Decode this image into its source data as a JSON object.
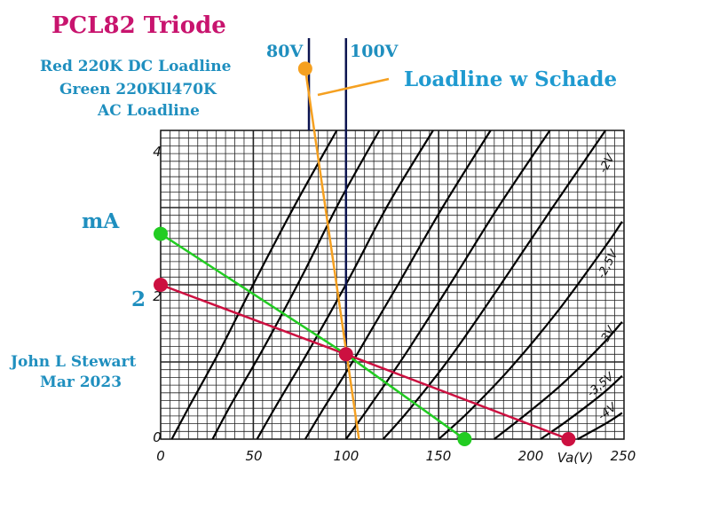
{
  "chart_data": {
    "type": "line",
    "title": "PCL82 Triode",
    "xlabel": "Va(V)",
    "ylabel": "mA",
    "xlim": [
      0,
      250
    ],
    "ylim": [
      0,
      4
    ],
    "x_ticks": [
      "0",
      "50",
      "100",
      "150",
      "200",
      "250"
    ],
    "y_ticks": [
      "0",
      "2",
      "4"
    ],
    "y_extra_label": "2",
    "grid": true,
    "notes": {
      "red": "Red 220K DC Loadline",
      "green_1": "Green 220Kll470K",
      "green_2": "AC Loadline",
      "author": "John L Stewart",
      "date": "Mar 2023",
      "schade": "Loadline w Schade"
    },
    "colors": {
      "title": "#c8146e",
      "notes": "#1f8fbf",
      "schade": "#1f9ad0",
      "red": "#cc1040",
      "green": "#22cc22",
      "orange": "#f5a020",
      "vlines": "#0c1450",
      "curves": "#000000"
    },
    "vertical_lines": [
      {
        "label": "80V",
        "x": 80
      },
      {
        "label": "100V",
        "x": 100
      }
    ],
    "grid_curves": [
      {
        "label": "",
        "points": [
          [
            6,
            0
          ],
          [
            16,
            0.45
          ],
          [
            32,
            1.15
          ],
          [
            52,
            2.1
          ],
          [
            74,
            3.1
          ],
          [
            95,
            4.0
          ]
        ]
      },
      {
        "label": "",
        "points": [
          [
            28,
            0
          ],
          [
            38,
            0.45
          ],
          [
            56,
            1.2
          ],
          [
            76,
            2.1
          ],
          [
            97,
            3.1
          ],
          [
            118,
            4.0
          ]
        ]
      },
      {
        "label": "",
        "points": [
          [
            52,
            0
          ],
          [
            62,
            0.42
          ],
          [
            80,
            1.15
          ],
          [
            101,
            2.05
          ],
          [
            123,
            3.05
          ],
          [
            147,
            4.0
          ]
        ]
      },
      {
        "label": "",
        "points": [
          [
            78,
            0
          ],
          [
            88,
            0.4
          ],
          [
            106,
            1.1
          ],
          [
            128,
            2.0
          ],
          [
            152,
            3.0
          ],
          [
            178,
            4.0
          ]
        ]
      },
      {
        "label": "",
        "points": [
          [
            100,
            0
          ],
          [
            112,
            0.4
          ],
          [
            132,
            1.1
          ],
          [
            156,
            2.0
          ],
          [
            182,
            3.0
          ],
          [
            210,
            4.0
          ]
        ]
      },
      {
        "label": "-2V",
        "points": [
          [
            120,
            0
          ],
          [
            134,
            0.38
          ],
          [
            156,
            1.05
          ],
          [
            182,
            1.95
          ],
          [
            210,
            2.95
          ],
          [
            240,
            4.0
          ]
        ]
      },
      {
        "label": "-2,5V",
        "points": [
          [
            150,
            0
          ],
          [
            166,
            0.35
          ],
          [
            188,
            0.9
          ],
          [
            214,
            1.65
          ],
          [
            240,
            2.5
          ],
          [
            249,
            2.82
          ]
        ]
      },
      {
        "label": "-3V",
        "points": [
          [
            180,
            0
          ],
          [
            196,
            0.3
          ],
          [
            216,
            0.7
          ],
          [
            238,
            1.22
          ],
          [
            249,
            1.52
          ]
        ]
      },
      {
        "label": "-3,5V",
        "points": [
          [
            205,
            0
          ],
          [
            220,
            0.25
          ],
          [
            238,
            0.58
          ],
          [
            249,
            0.82
          ]
        ]
      },
      {
        "label": "-4V",
        "points": [
          [
            225,
            0
          ],
          [
            240,
            0.2
          ],
          [
            249,
            0.34
          ]
        ]
      }
    ],
    "series": [
      {
        "name": "Red 220K DC Loadline",
        "x": [
          0,
          100,
          220
        ],
        "y": [
          2.0,
          1.1,
          0.0
        ]
      },
      {
        "name": "Green 220Kll470K AC Loadline",
        "x": [
          0,
          100,
          164
        ],
        "y": [
          2.66,
          1.1,
          0.0
        ]
      },
      {
        "name": "Loadline w Schade",
        "x": [
          78,
          107
        ],
        "y": [
          4.8,
          0.0
        ]
      }
    ],
    "markers": [
      {
        "series": "red",
        "x": 0,
        "y": 2.0
      },
      {
        "series": "red",
        "x": 100,
        "y": 1.1
      },
      {
        "series": "red",
        "x": 220,
        "y": 0.0
      },
      {
        "series": "green",
        "x": 0,
        "y": 2.66
      },
      {
        "series": "green",
        "x": 164,
        "y": 0.0
      },
      {
        "series": "orange",
        "x": 78,
        "y": 4.8
      }
    ]
  }
}
